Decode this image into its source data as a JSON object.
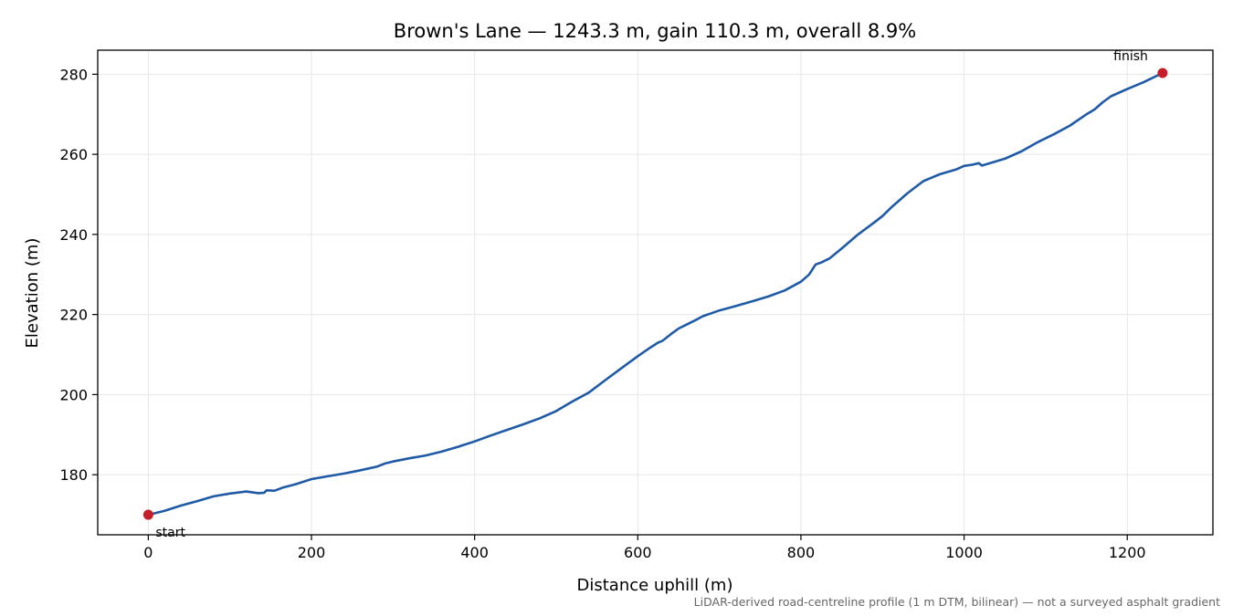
{
  "chart_data": {
    "type": "line",
    "title": "Brown's Lane — 1243.3 m, gain 110.3 m, overall 8.9%",
    "xlabel": "Distance uphill (m)",
    "ylabel": "Elevation (m)",
    "xlim": [
      -62,
      1305
    ],
    "ylim": [
      165,
      286
    ],
    "xticks": [
      0,
      200,
      400,
      600,
      800,
      1000,
      1200
    ],
    "yticks": [
      180,
      200,
      220,
      240,
      260,
      280
    ],
    "grid": true,
    "legend": "none",
    "line_color": "#1f5aa6",
    "marker_color": "#c41e2a",
    "footnote": "LiDAR-derived road-centreline profile (1 m DTM, bilinear) — not a surveyed asphalt gradient",
    "annotations": [
      {
        "text": "start",
        "x": 0,
        "y": 170.0
      },
      {
        "text": "finish",
        "x": 1243.3,
        "y": 280.3
      }
    ],
    "series": [
      {
        "x": [
          0,
          20,
          40,
          60,
          80,
          100,
          120,
          135,
          142,
          145,
          155,
          165,
          180,
          200,
          220,
          240,
          260,
          280,
          290,
          300,
          320,
          340,
          360,
          380,
          400,
          420,
          440,
          460,
          480,
          500,
          520,
          540,
          560,
          580,
          600,
          615,
          625,
          630,
          640,
          650,
          660,
          670,
          680,
          690,
          700,
          720,
          740,
          760,
          780,
          800,
          810,
          818,
          825,
          835,
          850,
          870,
          890,
          900,
          910,
          930,
          950,
          970,
          990,
          1000,
          1010,
          1018,
          1022,
          1030,
          1050,
          1070,
          1090,
          1110,
          1130,
          1150,
          1160,
          1170,
          1180,
          1200,
          1220,
          1243.3
        ],
        "y": [
          170.0,
          171.0,
          172.3,
          173.4,
          174.6,
          175.3,
          175.8,
          175.4,
          175.5,
          176.1,
          176.0,
          176.8,
          177.6,
          178.9,
          179.6,
          180.3,
          181.1,
          182.0,
          182.8,
          183.3,
          184.1,
          184.8,
          185.8,
          187.0,
          188.3,
          189.8,
          191.2,
          192.6,
          194.1,
          195.9,
          198.3,
          200.5,
          203.6,
          206.6,
          209.6,
          211.7,
          213.0,
          213.4,
          215.0,
          216.5,
          217.5,
          218.5,
          219.6,
          220.3,
          221.0,
          222.1,
          223.3,
          224.5,
          226.0,
          228.2,
          230.0,
          232.5,
          233.0,
          234.0,
          236.5,
          240.0,
          243.0,
          244.6,
          246.6,
          250.2,
          253.3,
          255.0,
          256.2,
          257.1,
          257.4,
          257.8,
          257.2,
          257.7,
          258.9,
          260.7,
          263.0,
          265.0,
          267.2,
          270.0,
          271.2,
          273.0,
          274.5,
          276.3,
          278.0,
          280.3
        ]
      }
    ]
  }
}
